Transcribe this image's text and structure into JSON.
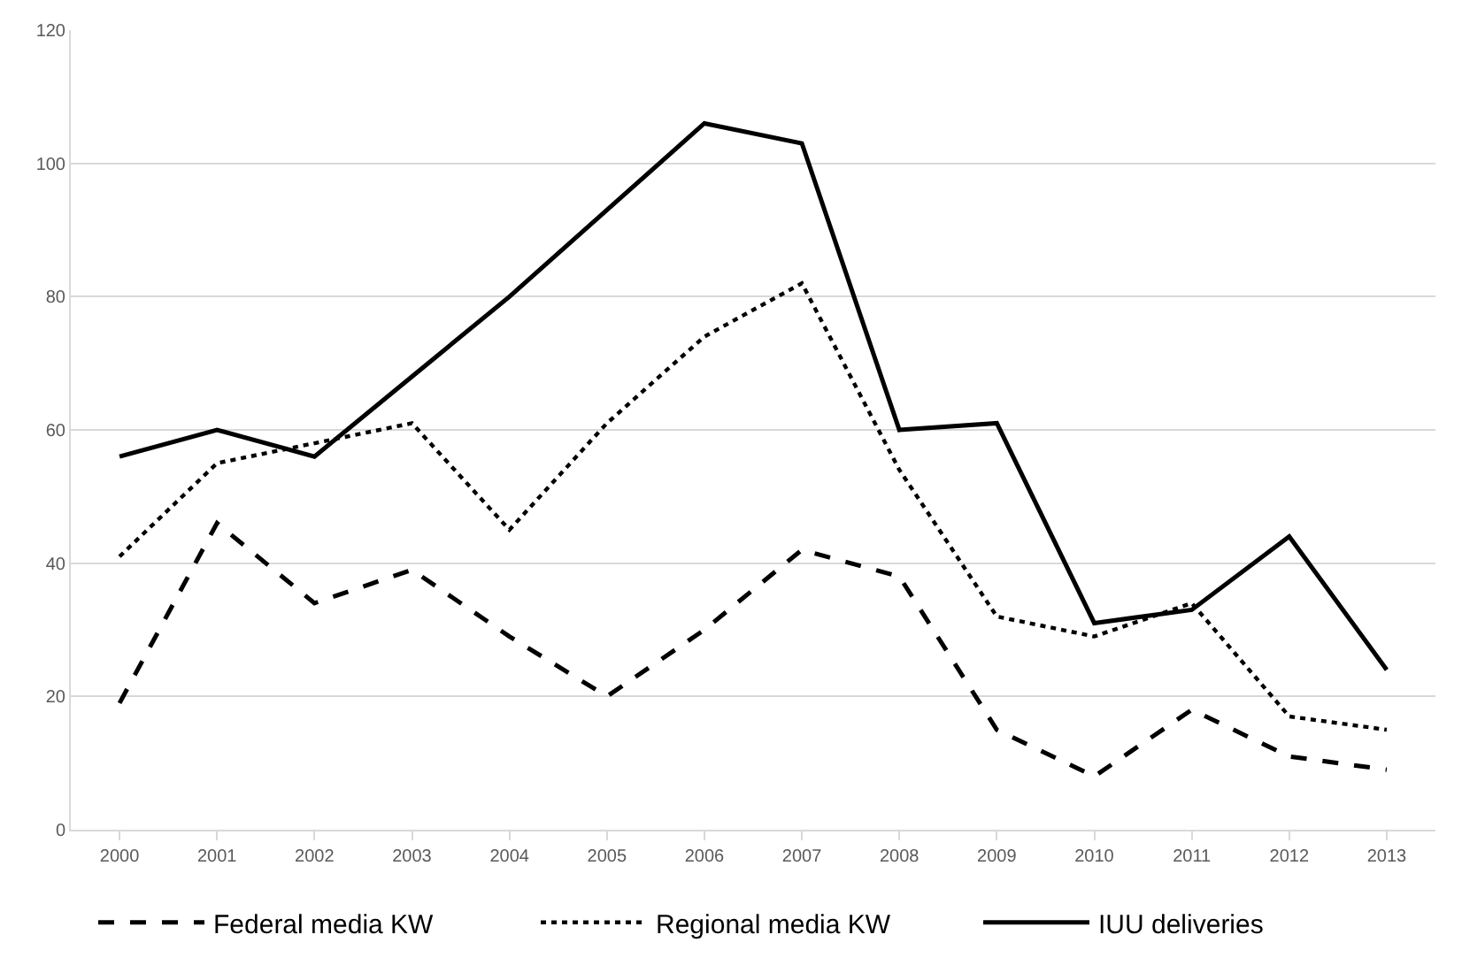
{
  "chart_data": {
    "type": "line",
    "categories": [
      "2000",
      "2001",
      "2002",
      "2003",
      "2004",
      "2005",
      "2006",
      "2007",
      "2008",
      "2009",
      "2010",
      "2011",
      "2012",
      "2013"
    ],
    "series": [
      {
        "name": "Federal media KW",
        "color": "#000000",
        "line_style": "dashed",
        "values": [
          19,
          46,
          34,
          39,
          29,
          20,
          30,
          42,
          38,
          15,
          8,
          18,
          11,
          9
        ]
      },
      {
        "name": "Regional media KW",
        "color": "#000000",
        "line_style": "dotted",
        "values": [
          41,
          55,
          58,
          61,
          45,
          61,
          74,
          82,
          54,
          32,
          29,
          34,
          17,
          15
        ]
      },
      {
        "name": "IUU deliveries",
        "color": "#000000",
        "line_style": "solid",
        "values": [
          56,
          60,
          56,
          68,
          80,
          93,
          106,
          103,
          60,
          61,
          31,
          33,
          44,
          24
        ]
      }
    ],
    "ylim": [
      0,
      120
    ],
    "yticks": [
      0,
      20,
      40,
      60,
      80,
      100,
      120
    ],
    "grid": "y",
    "legend": "bottom",
    "marker": "none"
  }
}
